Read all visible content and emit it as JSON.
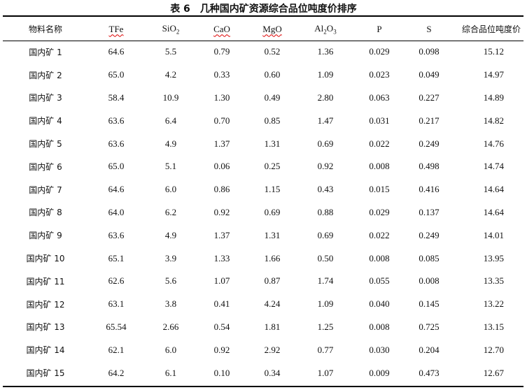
{
  "title": "表 6　几种国内矿资源综合品位吨度价排序",
  "columns": [
    {
      "label": "物料名称"
    },
    {
      "label": "TFe",
      "spell": true
    },
    {
      "label": "SiO",
      "sub": "2"
    },
    {
      "label": "CaO",
      "spell": true
    },
    {
      "label": "MgO",
      "spell": true
    },
    {
      "label": "Al",
      "sub": "2",
      "tail": "O",
      "sub2": "3"
    },
    {
      "label": "P"
    },
    {
      "label": "S"
    },
    {
      "label": "综合品位吨度价"
    }
  ],
  "rows": [
    [
      "国内矿 1",
      "64.6",
      "5.5",
      "0.79",
      "0.52",
      "1.36",
      "0.029",
      "0.098",
      "15.12"
    ],
    [
      "国内矿 2",
      "65.0",
      "4.2",
      "0.33",
      "0.60",
      "1.09",
      "0.023",
      "0.049",
      "14.97"
    ],
    [
      "国内矿 3",
      "58.4",
      "10.9",
      "1.30",
      "0.49",
      "2.80",
      "0.063",
      "0.227",
      "14.89"
    ],
    [
      "国内矿 4",
      "63.6",
      "6.4",
      "0.70",
      "0.85",
      "1.47",
      "0.031",
      "0.217",
      "14.82"
    ],
    [
      "国内矿 5",
      "63.6",
      "4.9",
      "1.37",
      "1.31",
      "0.69",
      "0.022",
      "0.249",
      "14.76"
    ],
    [
      "国内矿 6",
      "65.0",
      "5.1",
      "0.06",
      "0.25",
      "0.92",
      "0.008",
      "0.498",
      "14.74"
    ],
    [
      "国内矿 7",
      "64.6",
      "6.0",
      "0.86",
      "1.15",
      "0.43",
      "0.015",
      "0.416",
      "14.64"
    ],
    [
      "国内矿 8",
      "64.0",
      "6.2",
      "0.92",
      "0.69",
      "0.88",
      "0.029",
      "0.137",
      "14.64"
    ],
    [
      "国内矿 9",
      "63.6",
      "4.9",
      "1.37",
      "1.31",
      "0.69",
      "0.022",
      "0.249",
      "14.01"
    ],
    [
      "国内矿 10",
      "65.1",
      "3.9",
      "1.33",
      "1.66",
      "0.50",
      "0.008",
      "0.085",
      "13.95"
    ],
    [
      "国内矿 11",
      "62.6",
      "5.6",
      "1.07",
      "0.87",
      "1.74",
      "0.055",
      "0.008",
      "13.35"
    ],
    [
      "国内矿 12",
      "63.1",
      "3.8",
      "0.41",
      "4.24",
      "1.09",
      "0.040",
      "0.145",
      "13.22"
    ],
    [
      "国内矿 13",
      "65.54",
      "2.66",
      "0.54",
      "1.81",
      "1.25",
      "0.008",
      "0.725",
      "13.15"
    ],
    [
      "国内矿 14",
      "62.1",
      "6.0",
      "0.92",
      "2.92",
      "0.77",
      "0.030",
      "0.204",
      "12.70"
    ],
    [
      "国内矿 15",
      "64.2",
      "6.1",
      "0.10",
      "0.34",
      "1.07",
      "0.009",
      "0.473",
      "12.67"
    ]
  ]
}
